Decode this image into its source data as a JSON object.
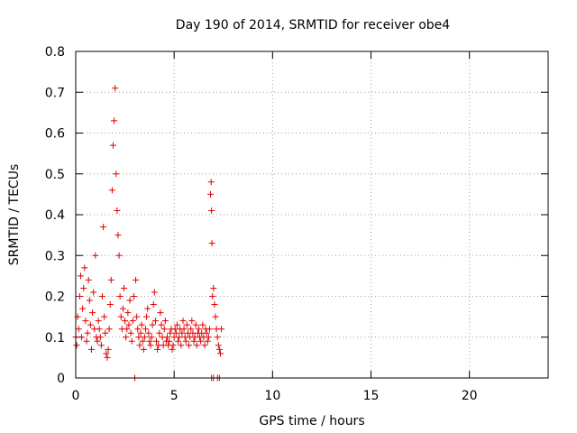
{
  "chart_data": {
    "type": "scatter",
    "title": "Day 190 of 2014, SRMTID for receiver obe4",
    "xlabel": "GPS time / hours",
    "ylabel": "SRMTID / TECUs",
    "xlim": [
      0,
      24
    ],
    "ylim": [
      0,
      0.8
    ],
    "xticks": [
      "0",
      "5",
      "10",
      "15",
      "20"
    ],
    "yticks": [
      "0",
      "0.1",
      "0.2",
      "0.3",
      "0.4",
      "0.5",
      "0.6",
      "0.7",
      "0.8"
    ],
    "grid": true,
    "marker": "+",
    "color": "#e00000",
    "series": [
      {
        "name": "obe4",
        "points": [
          [
            0.0,
            0.1
          ],
          [
            0.05,
            0.08
          ],
          [
            0.1,
            0.15
          ],
          [
            0.15,
            0.12
          ],
          [
            0.2,
            0.2
          ],
          [
            0.25,
            0.25
          ],
          [
            0.3,
            0.1
          ],
          [
            0.35,
            0.17
          ],
          [
            0.4,
            0.22
          ],
          [
            0.45,
            0.27
          ],
          [
            0.5,
            0.14
          ],
          [
            0.55,
            0.09
          ],
          [
            0.6,
            0.11
          ],
          [
            0.65,
            0.24
          ],
          [
            0.7,
            0.19
          ],
          [
            0.75,
            0.13
          ],
          [
            0.8,
            0.07
          ],
          [
            0.85,
            0.16
          ],
          [
            0.9,
            0.21
          ],
          [
            0.95,
            0.12
          ],
          [
            1.0,
            0.3
          ],
          [
            1.05,
            0.1
          ],
          [
            1.1,
            0.09
          ],
          [
            1.15,
            0.14
          ],
          [
            1.2,
            0.12
          ],
          [
            1.25,
            0.1
          ],
          [
            1.3,
            0.08
          ],
          [
            1.35,
            0.2
          ],
          [
            1.4,
            0.37
          ],
          [
            1.45,
            0.15
          ],
          [
            1.5,
            0.11
          ],
          [
            1.55,
            0.06
          ],
          [
            1.6,
            0.05
          ],
          [
            1.65,
            0.07
          ],
          [
            1.7,
            0.12
          ],
          [
            1.75,
            0.18
          ],
          [
            1.8,
            0.24
          ],
          [
            1.85,
            0.46
          ],
          [
            1.9,
            0.57
          ],
          [
            1.95,
            0.63
          ],
          [
            2.0,
            0.71
          ],
          [
            2.05,
            0.5
          ],
          [
            2.1,
            0.41
          ],
          [
            2.15,
            0.35
          ],
          [
            2.2,
            0.3
          ],
          [
            2.25,
            0.2
          ],
          [
            2.3,
            0.15
          ],
          [
            2.35,
            0.12
          ],
          [
            2.4,
            0.17
          ],
          [
            2.45,
            0.22
          ],
          [
            2.5,
            0.14
          ],
          [
            2.55,
            0.1
          ],
          [
            2.6,
            0.12
          ],
          [
            2.65,
            0.16
          ],
          [
            2.7,
            0.13
          ],
          [
            2.75,
            0.19
          ],
          [
            2.8,
            0.11
          ],
          [
            2.85,
            0.09
          ],
          [
            2.9,
            0.14
          ],
          [
            2.95,
            0.2
          ],
          [
            3.05,
            0.24
          ],
          [
            3.1,
            0.15
          ],
          [
            3.15,
            0.12
          ],
          [
            3.2,
            0.1
          ],
          [
            3.25,
            0.08
          ],
          [
            3.3,
            0.11
          ],
          [
            3.35,
            0.13
          ],
          [
            3.4,
            0.09
          ],
          [
            3.45,
            0.07
          ],
          [
            3.5,
            0.1
          ],
          [
            3.55,
            0.12
          ],
          [
            3.6,
            0.15
          ],
          [
            3.65,
            0.17
          ],
          [
            3.7,
            0.11
          ],
          [
            3.75,
            0.09
          ],
          [
            3.8,
            0.08
          ],
          [
            3.85,
            0.1
          ],
          [
            3.9,
            0.13
          ],
          [
            3.95,
            0.18
          ],
          [
            4.0,
            0.21
          ],
          [
            4.05,
            0.14
          ],
          [
            4.1,
            0.09
          ],
          [
            4.15,
            0.07
          ],
          [
            4.2,
            0.08
          ],
          [
            4.25,
            0.11
          ],
          [
            4.3,
            0.16
          ],
          [
            4.35,
            0.13
          ],
          [
            4.4,
            0.1
          ],
          [
            4.45,
            0.08
          ],
          [
            4.5,
            0.12
          ],
          [
            4.55,
            0.14
          ],
          [
            4.6,
            0.09
          ],
          [
            4.65,
            0.1
          ],
          [
            4.7,
            0.08
          ],
          [
            4.75,
            0.09
          ],
          [
            4.8,
            0.11
          ],
          [
            4.85,
            0.12
          ],
          [
            4.9,
            0.07
          ],
          [
            4.95,
            0.08
          ],
          [
            5.0,
            0.1
          ],
          [
            5.05,
            0.12
          ],
          [
            5.1,
            0.11
          ],
          [
            5.15,
            0.13
          ],
          [
            5.2,
            0.09
          ],
          [
            5.25,
            0.1
          ],
          [
            5.3,
            0.12
          ],
          [
            5.35,
            0.08
          ],
          [
            5.4,
            0.11
          ],
          [
            5.45,
            0.14
          ],
          [
            5.5,
            0.12
          ],
          [
            5.55,
            0.1
          ],
          [
            5.6,
            0.09
          ],
          [
            5.65,
            0.13
          ],
          [
            5.7,
            0.11
          ],
          [
            5.75,
            0.08
          ],
          [
            5.8,
            0.1
          ],
          [
            5.85,
            0.12
          ],
          [
            5.9,
            0.14
          ],
          [
            5.95,
            0.11
          ],
          [
            6.0,
            0.09
          ],
          [
            6.05,
            0.1
          ],
          [
            6.1,
            0.13
          ],
          [
            6.15,
            0.08
          ],
          [
            6.2,
            0.11
          ],
          [
            6.25,
            0.12
          ],
          [
            6.3,
            0.1
          ],
          [
            6.35,
            0.09
          ],
          [
            6.4,
            0.11
          ],
          [
            6.45,
            0.13
          ],
          [
            6.5,
            0.1
          ],
          [
            6.55,
            0.08
          ],
          [
            6.6,
            0.12
          ],
          [
            6.65,
            0.11
          ],
          [
            6.7,
            0.09
          ],
          [
            6.75,
            0.1
          ],
          [
            6.8,
            0.12
          ],
          [
            6.85,
            0.45
          ],
          [
            6.88,
            0.48
          ],
          [
            6.9,
            0.41
          ],
          [
            6.92,
            0.33
          ],
          [
            6.95,
            0.2
          ],
          [
            7.0,
            0.22
          ],
          [
            7.05,
            0.18
          ],
          [
            7.1,
            0.15
          ],
          [
            7.15,
            0.12
          ],
          [
            7.2,
            0.1
          ],
          [
            7.25,
            0.08
          ],
          [
            7.3,
            0.07
          ],
          [
            7.35,
            0.06
          ],
          [
            7.4,
            0.12
          ],
          [
            3.0,
            0.0
          ],
          [
            6.9,
            0.0
          ],
          [
            7.0,
            0.0
          ],
          [
            7.2,
            0.0
          ],
          [
            7.3,
            0.0
          ]
        ]
      }
    ]
  }
}
